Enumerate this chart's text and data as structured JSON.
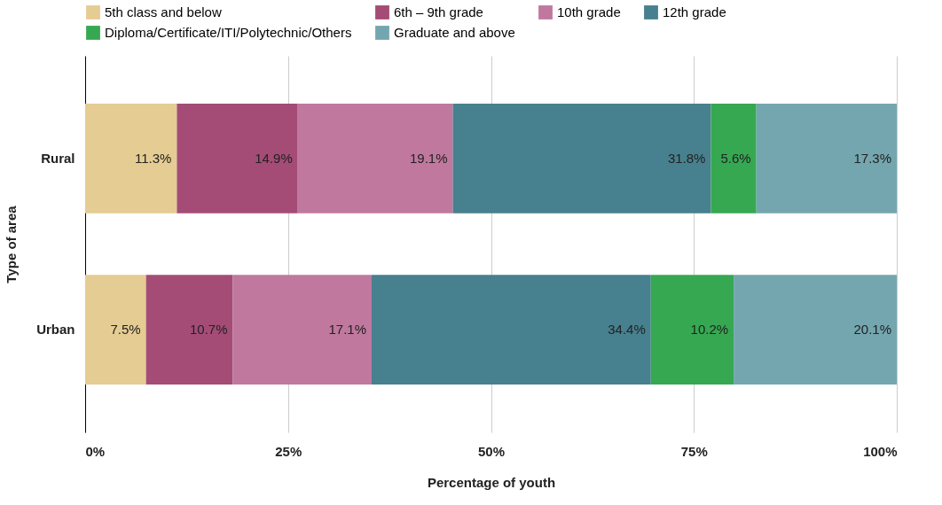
{
  "chart_data": {
    "type": "bar",
    "orientation": "horizontal",
    "stacked": true,
    "xlabel": "Percentage of youth",
    "ylabel": "Type of area",
    "categories": [
      "Rural",
      "Urban"
    ],
    "series": [
      {
        "name": "5th class and below",
        "color": "#e5cc92",
        "values": [
          11.3,
          7.5
        ],
        "value_labels": [
          "11.3%",
          "7.5%"
        ]
      },
      {
        "name": "6th – 9th grade",
        "color": "#a44c76",
        "values": [
          14.9,
          10.7
        ],
        "value_labels": [
          "14.9%",
          "10.7%"
        ]
      },
      {
        "name": "10th grade",
        "color": "#c0789e",
        "values": [
          19.1,
          17.1
        ],
        "value_labels": [
          "19.1%",
          "17.1%"
        ]
      },
      {
        "name": "12th grade",
        "color": "#47808e",
        "values": [
          31.8,
          34.4
        ],
        "value_labels": [
          "31.8%",
          "34.4%"
        ]
      },
      {
        "name": "Diploma/Certificate/ITI/Polytechnic/Others",
        "color": "#36a852",
        "values": [
          5.6,
          10.2
        ],
        "value_labels": [
          "5.6%",
          "10.2%"
        ]
      },
      {
        "name": "Graduate and above",
        "color": "#74a6b0",
        "values": [
          17.3,
          20.1
        ],
        "value_labels": [
          "17.3%",
          "20.1%"
        ]
      }
    ],
    "xlim": [
      0,
      100
    ],
    "xticks": [
      {
        "value": 0,
        "label": "0%"
      },
      {
        "value": 25,
        "label": "25%"
      },
      {
        "value": 50,
        "label": "50%"
      },
      {
        "value": 75,
        "label": "75%"
      },
      {
        "value": 100,
        "label": "100%"
      }
    ],
    "grid": "x",
    "legend": "top"
  }
}
